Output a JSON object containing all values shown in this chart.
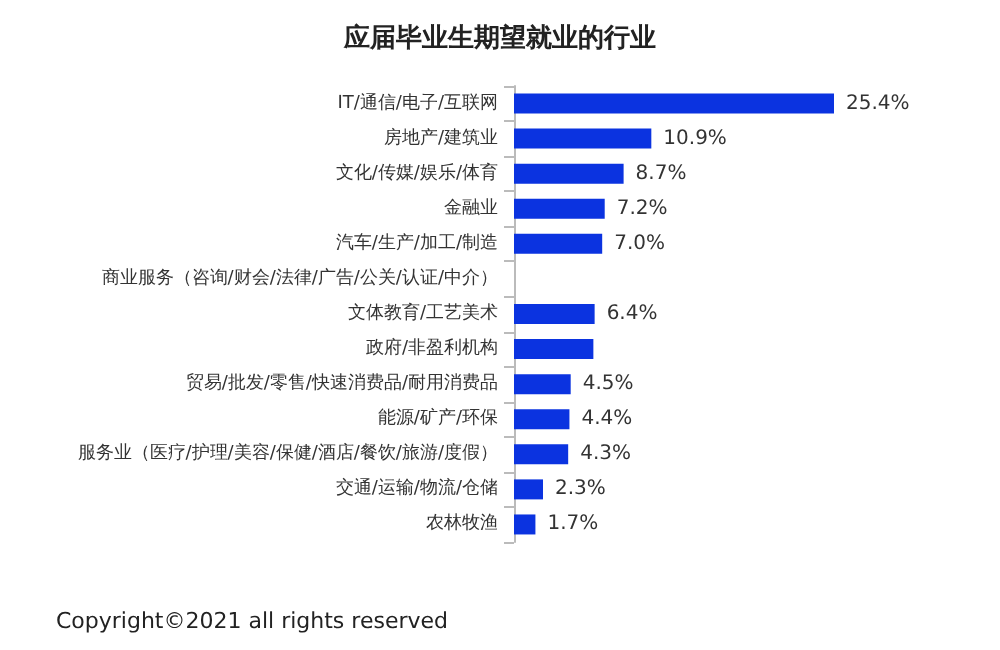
{
  "chart_data": {
    "type": "bar",
    "orientation": "horizontal",
    "title": "应届毕业生期望就业的行业",
    "categories": [
      "IT/通信/电子/互联网",
      "房地产/建筑业",
      "文化/传媒/娱乐/体育",
      "金融业",
      "汽车/生产/加工/制造",
      "商业服务（咨询/财会/法律/广告/公关/认证/中介）",
      "文体教育/工艺美术",
      "政府/非盈利机构",
      "贸易/批发/零售/快速消费品/耐用消费品",
      "能源/矿产/环保",
      "服务业（医疗/护理/美容/保健/酒店/餐饮/旅游/度假）",
      "交通/运输/物流/仓储",
      "农林牧渔"
    ],
    "values": [
      25.4,
      10.9,
      8.7,
      7.2,
      7.0,
      null,
      6.4,
      6.3,
      4.5,
      4.4,
      4.3,
      2.3,
      1.7
    ],
    "value_labels": [
      "25.4%",
      "10.9%",
      "8.7%",
      "7.2%",
      "7.0%",
      null,
      "6.4%",
      null,
      "4.5%",
      "4.4%",
      "4.3%",
      "2.3%",
      "1.7%"
    ],
    "color": "#0b33e0",
    "annotations": [
      "Copyright©2021 all rights reserved"
    ]
  }
}
